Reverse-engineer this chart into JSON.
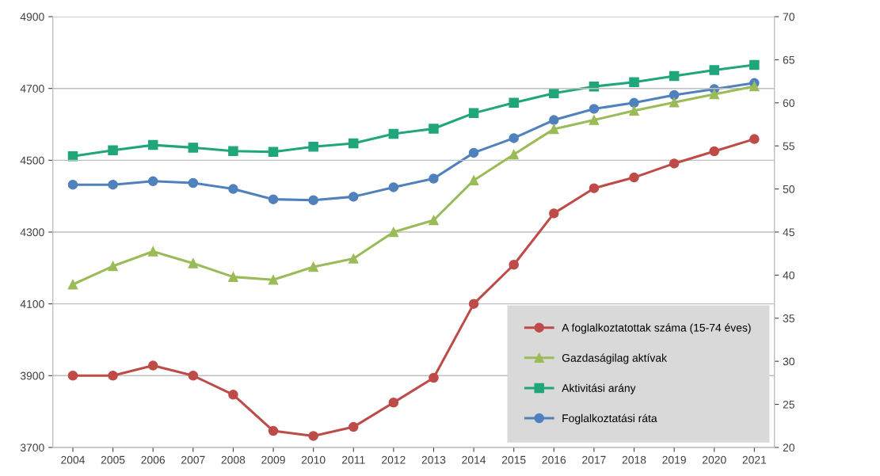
{
  "chart_data": {
    "type": "line",
    "categories": [
      "2004",
      "2005",
      "2006",
      "2007",
      "2008",
      "2009",
      "2010",
      "2011",
      "2012",
      "2013",
      "2014",
      "2015",
      "2016",
      "2017",
      "2018",
      "2019",
      "2020",
      "2021"
    ],
    "series": [
      {
        "name": "A foglalkoztatottak száma (15-74 éves)",
        "color": "#be4b48",
        "marker": "circle",
        "values": [
          3900,
          3900,
          3928,
          3900,
          3847,
          3746,
          3732,
          3757,
          3825,
          3894,
          4100,
          4209,
          4352,
          4422,
          4452,
          4491,
          4525,
          4559
        ]
      },
      {
        "name": "Gazdaságilag aktívak",
        "color": "#9bbb59",
        "marker": "triangle",
        "values": [
          4154,
          4205,
          4246,
          4213,
          4175,
          4167,
          4203,
          4226,
          4300,
          4333,
          4444,
          4516,
          4587,
          4612,
          4638,
          4661,
          4684,
          4706
        ]
      },
      {
        "name": "Aktivitási arány",
        "color": "#1fa67a",
        "marker": "square",
        "axis": "y2",
        "values": [
          53.8,
          54.5,
          55.1,
          54.8,
          54.4,
          54.3,
          54.9,
          55.3,
          56.4,
          57.0,
          58.8,
          60.0,
          61.1,
          61.9,
          62.4,
          63.1,
          63.8,
          64.4
        ]
      },
      {
        "name": "Foglalkoztatási ráta",
        "color": "#4f81bd",
        "marker": "circle",
        "axis": "y2",
        "values": [
          50.5,
          50.5,
          50.9,
          50.7,
          50.0,
          48.8,
          48.7,
          49.1,
          50.2,
          51.2,
          54.2,
          55.9,
          58.0,
          59.3,
          60.0,
          60.9,
          61.6,
          62.3
        ]
      }
    ],
    "ylim": [
      3700,
      4900
    ],
    "yticks": [
      3700,
      3900,
      4100,
      4300,
      4500,
      4700,
      4900
    ],
    "y2lim": [
      20,
      70
    ],
    "y2ticks": [
      20,
      25,
      30,
      35,
      40,
      45,
      50,
      55,
      60,
      65,
      70
    ],
    "grid": "y",
    "legend": "bottom right",
    "line_style": "solid"
  }
}
